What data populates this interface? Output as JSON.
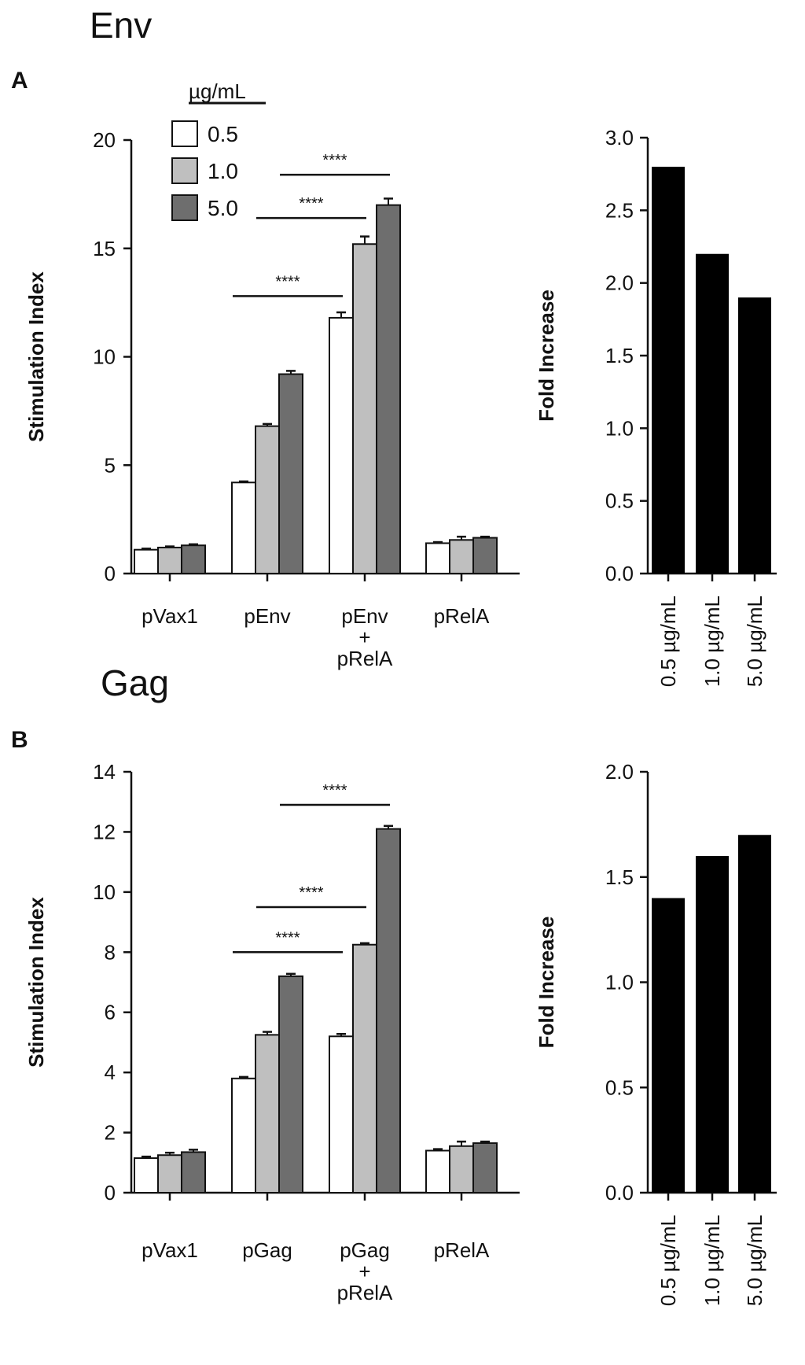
{
  "colors": {
    "dose_0_5": "#ffffff",
    "dose_1_0": "#bfbfbf",
    "dose_5_0": "#6e6e6e",
    "fold_bar": "#000000",
    "axis": "#111111"
  },
  "legend": {
    "title": "µg/mL",
    "entries": [
      "0.5",
      "1.0",
      "5.0"
    ]
  },
  "chart_data": [
    {
      "type": "bar",
      "section_title": "Env",
      "panel_letter": "A",
      "ylabel": "Stimulation Index",
      "ylim": [
        0,
        20
      ],
      "yticks": [
        "0",
        "5",
        "10",
        "15",
        "20"
      ],
      "categories": [
        [
          "pVax1"
        ],
        [
          "pEnv"
        ],
        [
          "pEnv",
          "+",
          "pRelA"
        ],
        [
          "pRelA"
        ]
      ],
      "series": [
        {
          "name": "0.5",
          "values": [
            1.1,
            4.2,
            11.8,
            1.4
          ],
          "errors": [
            0.05,
            0.05,
            0.25,
            0.05
          ]
        },
        {
          "name": "1.0",
          "values": [
            1.2,
            6.8,
            15.2,
            1.55
          ],
          "errors": [
            0.05,
            0.1,
            0.35,
            0.15
          ]
        },
        {
          "name": "5.0",
          "values": [
            1.3,
            9.2,
            17.0,
            1.65
          ],
          "errors": [
            0.05,
            0.15,
            0.3,
            0.05
          ]
        }
      ],
      "significance": [
        {
          "label": "****",
          "from": [
            1,
            0
          ],
          "to": [
            2,
            0
          ],
          "y": 12.8
        },
        {
          "label": "****",
          "from": [
            1,
            1
          ],
          "to": [
            2,
            1
          ],
          "y": 16.4
        },
        {
          "label": "****",
          "from": [
            1,
            2
          ],
          "to": [
            2,
            2
          ],
          "y": 18.4
        }
      ]
    },
    {
      "type": "bar",
      "ylabel": "Fold Increase",
      "ylim": [
        0,
        3
      ],
      "yticks": [
        "0.0",
        "0.5",
        "1.0",
        "1.5",
        "2.0",
        "2.5",
        "3.0"
      ],
      "categories": [
        "0.5 µg/mL",
        "1.0 µg/mL",
        "5.0 µg/mL"
      ],
      "values": [
        2.8,
        2.2,
        1.9
      ]
    },
    {
      "type": "bar",
      "section_title": "Gag",
      "panel_letter": "B",
      "ylabel": "Stimulation Index",
      "ylim": [
        0,
        14
      ],
      "yticks": [
        "0",
        "2",
        "4",
        "6",
        "8",
        "10",
        "12",
        "14"
      ],
      "categories": [
        [
          "pVax1"
        ],
        [
          "pGag"
        ],
        [
          "pGag",
          "+",
          "pRelA"
        ],
        [
          "pRelA"
        ]
      ],
      "series": [
        {
          "name": "0.5",
          "values": [
            1.15,
            3.8,
            5.2,
            1.4
          ],
          "errors": [
            0.05,
            0.05,
            0.08,
            0.05
          ]
        },
        {
          "name": "1.0",
          "values": [
            1.25,
            5.25,
            8.25,
            1.55
          ],
          "errors": [
            0.08,
            0.1,
            0.05,
            0.15
          ]
        },
        {
          "name": "5.0",
          "values": [
            1.35,
            7.2,
            12.1,
            1.65
          ],
          "errors": [
            0.08,
            0.08,
            0.1,
            0.05
          ]
        }
      ],
      "significance": [
        {
          "label": "****",
          "from": [
            1,
            0
          ],
          "to": [
            2,
            0
          ],
          "y": 8.0
        },
        {
          "label": "****",
          "from": [
            1,
            1
          ],
          "to": [
            2,
            1
          ],
          "y": 9.5
        },
        {
          "label": "****",
          "from": [
            1,
            2
          ],
          "to": [
            2,
            2
          ],
          "y": 12.9
        }
      ]
    },
    {
      "type": "bar",
      "ylabel": "Fold Increase",
      "ylim": [
        0,
        2
      ],
      "yticks": [
        "0.0",
        "0.5",
        "1.0",
        "1.5",
        "2.0"
      ],
      "categories": [
        "0.5 µg/mL",
        "1.0 µg/mL",
        "5.0 µg/mL"
      ],
      "values": [
        1.4,
        1.6,
        1.7
      ]
    }
  ]
}
